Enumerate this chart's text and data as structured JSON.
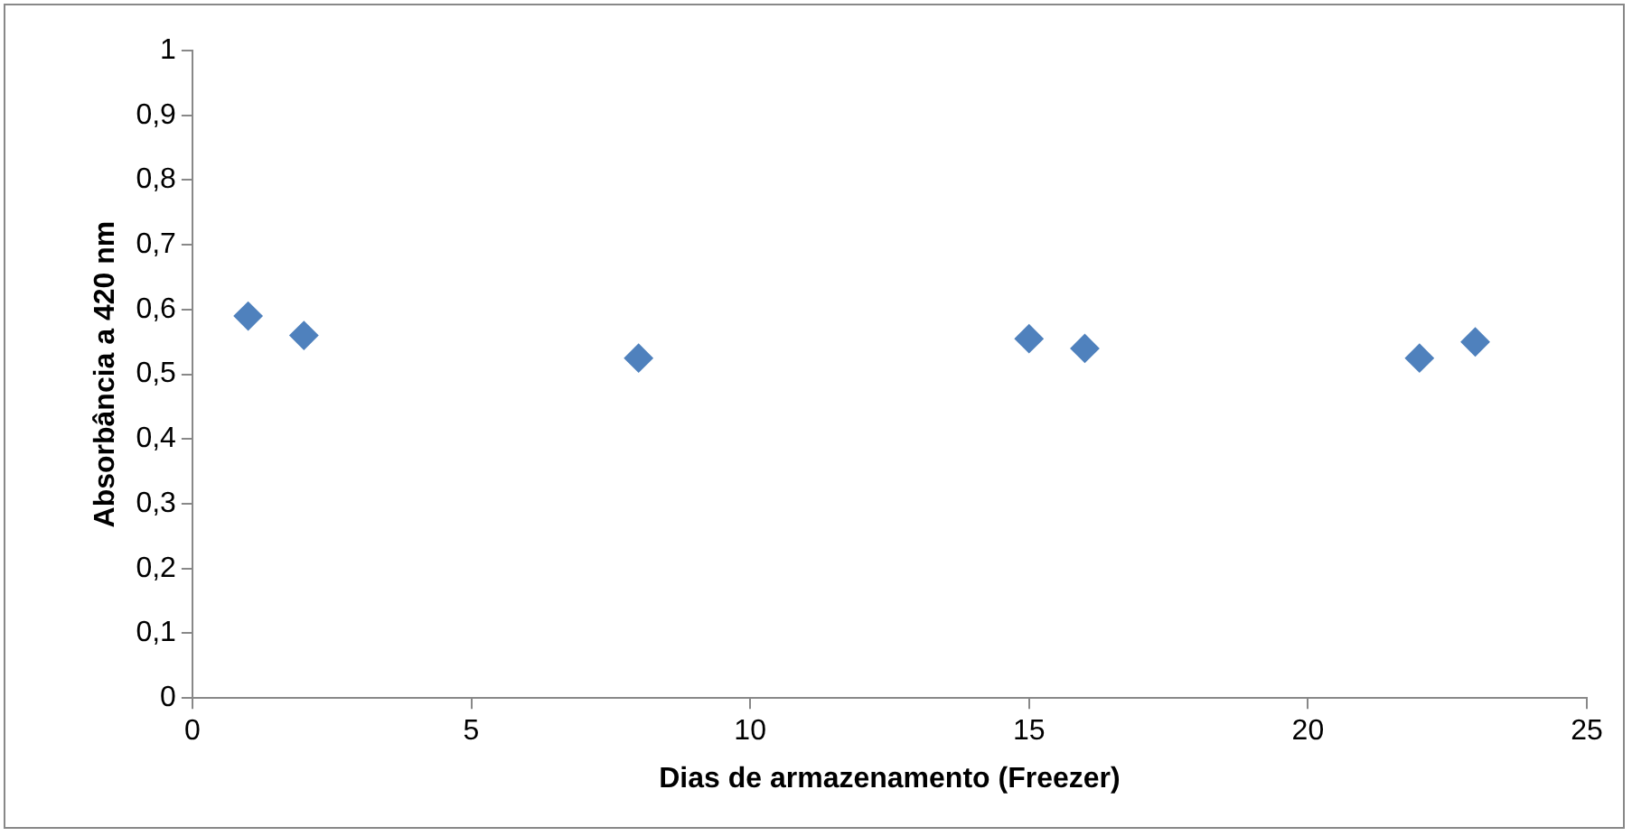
{
  "chart_data": {
    "type": "scatter",
    "xlabel": "Dias de armazenamento (Freezer)",
    "ylabel": "Absorbância a 420 nm",
    "x": [
      1,
      2,
      8,
      15,
      16,
      22,
      23
    ],
    "series": [
      {
        "color": "#4f81bd",
        "values": [
          0.59,
          0.56,
          0.525,
          0.555,
          0.54,
          0.525,
          0.55
        ]
      }
    ],
    "xlim": [
      0,
      25
    ],
    "xticks": [
      0,
      5,
      10,
      15,
      20,
      25
    ],
    "ylim": [
      0,
      1
    ],
    "yticks": [
      0,
      {
        "value": 0.1,
        "label": "0,1"
      },
      {
        "value": 0.2,
        "label": "0,2"
      },
      {
        "value": 0.3,
        "label": "0,3"
      },
      {
        "value": 0.4,
        "label": "0,4"
      },
      {
        "value": 0.5,
        "label": "0,5"
      },
      {
        "value": 0.6,
        "label": "0,6"
      },
      {
        "value": 0.7,
        "label": "0,7"
      },
      {
        "value": 0.8,
        "label": "0,8"
      },
      {
        "value": 0.9,
        "label": "0,9"
      },
      1
    ],
    "grid": false,
    "legend": false,
    "marker": "diamond"
  }
}
